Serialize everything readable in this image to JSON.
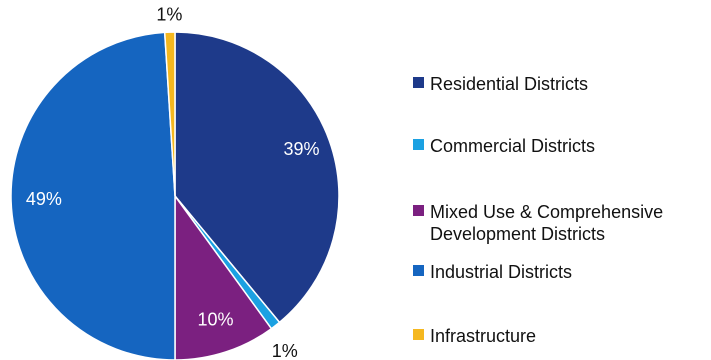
{
  "chart_data": {
    "type": "pie",
    "categories": [
      "Residential Districts",
      "Commercial Districts",
      "Mixed Use & Comprehensive\nDevelopment Districts",
      "Industrial Districts",
      "Infrastructure"
    ],
    "values": [
      39,
      1,
      10,
      49,
      1
    ],
    "value_labels": [
      "39%",
      "1%",
      "10%",
      "49%",
      "1%"
    ],
    "colors": [
      "#1e3a8a",
      "#1ba1e2",
      "#7b2080",
      "#1565c0",
      "#f5b820"
    ],
    "label_colors": [
      "#ffffff",
      "#111111",
      "#ffffff",
      "#ffffff",
      "#111111"
    ],
    "start_angle_deg": 0,
    "direction": "clockwise",
    "legend_position": "right"
  },
  "legend": {
    "items": [
      {
        "label": "Residential Districts",
        "color": "#1e3a8a"
      },
      {
        "label": "Commercial Districts",
        "color": "#1ba1e2"
      },
      {
        "label": "Mixed Use & Comprehensive\nDevelopment Districts",
        "color": "#7b2080"
      },
      {
        "label": "Industrial Districts",
        "color": "#1565c0"
      },
      {
        "label": "Infrastructure",
        "color": "#f5b820"
      }
    ]
  }
}
